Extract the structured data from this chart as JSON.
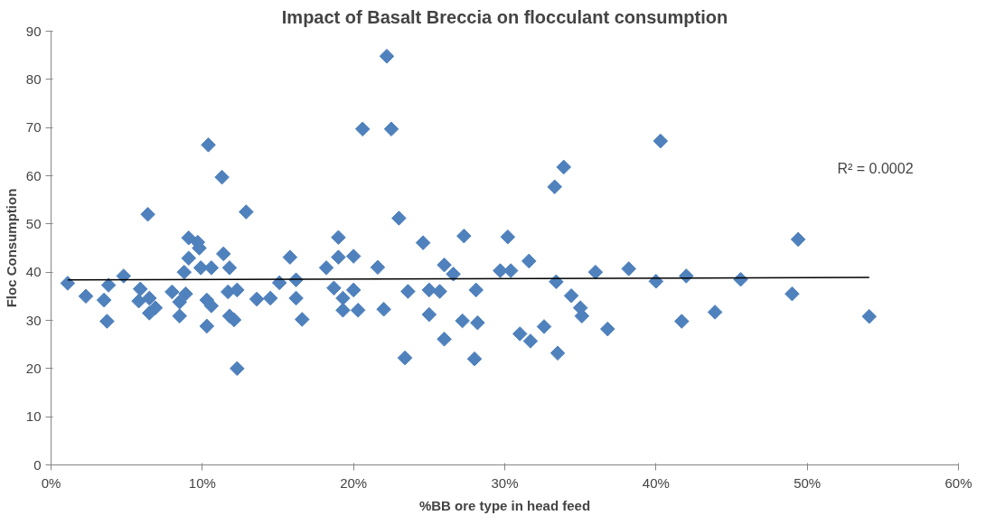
{
  "chart_data": {
    "type": "scatter",
    "title": "Impact of Basalt Breccia on flocculant consumption",
    "xlabel": "%BB ore type in head feed",
    "ylabel": "Floc Consumption",
    "xlim": [
      0,
      60
    ],
    "ylim": [
      0,
      90
    ],
    "xticks": [
      {
        "value": 0,
        "label": "0%"
      },
      {
        "value": 10,
        "label": "10%"
      },
      {
        "value": 20,
        "label": "20%"
      },
      {
        "value": 30,
        "label": "30%"
      },
      {
        "value": 40,
        "label": "40%"
      },
      {
        "value": 50,
        "label": "50%"
      },
      {
        "value": 60,
        "label": "60%"
      }
    ],
    "yticks": [
      0,
      10,
      20,
      30,
      40,
      50,
      60,
      70,
      80,
      90
    ],
    "grid": false,
    "annotations": [
      "R² = 0.0002"
    ],
    "series": [
      {
        "marker": "diamond",
        "color": "#4f81bd",
        "x": [
          1.1,
          2.3,
          3.8,
          3.5,
          3.7,
          4.8,
          5.9,
          5.8,
          6.4,
          6.5,
          6.5,
          6.9,
          8.0,
          8.5,
          8.9,
          8.5,
          9.1,
          9.7,
          9.8,
          8.8,
          9.1,
          9.9,
          10.6,
          10.4,
          11.3,
          12.9,
          11.4,
          11.8,
          10.3,
          10.6,
          10.3,
          11.7,
          12.3,
          11.8,
          12.1,
          12.3,
          13.6,
          14.5,
          15.1,
          15.8,
          16.2,
          16.2,
          16.6,
          18.2,
          19.0,
          19.0,
          18.7,
          19.3,
          19.3,
          20.0,
          22.2,
          20.6,
          22.5,
          23.0,
          21.6,
          20.0,
          20.3,
          22.0,
          24.6,
          23.6,
          23.4,
          25.0,
          25.0,
          25.7,
          26.0,
          26.6,
          27.3,
          26.0,
          27.2,
          28.1,
          28.2,
          28.0,
          29.7,
          30.2,
          30.4,
          31.6,
          31.0,
          31.7,
          32.6,
          33.3,
          33.9,
          33.4,
          33.5,
          34.4,
          35.0,
          35.1,
          36.8,
          36.0,
          38.2,
          40.3,
          40.0,
          42.0,
          41.7,
          43.9,
          45.6,
          49.4,
          49.0,
          54.1
        ],
        "values": [
          37.7,
          35.0,
          37.3,
          34.2,
          29.8,
          39.2,
          36.5,
          34.0,
          52.0,
          34.6,
          31.5,
          32.6,
          35.9,
          30.9,
          35.5,
          33.8,
          47.1,
          46.2,
          45.0,
          40.0,
          42.9,
          40.9,
          40.9,
          66.4,
          59.7,
          52.5,
          43.8,
          40.9,
          34.2,
          33.0,
          28.8,
          35.9,
          36.3,
          30.9,
          30.1,
          20.0,
          34.4,
          34.6,
          37.8,
          43.1,
          38.4,
          34.6,
          30.2,
          40.9,
          47.2,
          43.1,
          36.7,
          34.6,
          32.1,
          43.3,
          84.8,
          69.7,
          69.7,
          51.2,
          41.0,
          36.3,
          32.1,
          32.3,
          46.1,
          36.0,
          22.2,
          36.3,
          31.2,
          36.0,
          41.5,
          39.6,
          47.5,
          26.1,
          29.9,
          36.3,
          29.5,
          22.0,
          40.3,
          47.3,
          40.3,
          42.3,
          27.2,
          25.7,
          28.7,
          57.7,
          61.8,
          38.0,
          23.2,
          35.1,
          32.6,
          30.9,
          28.2,
          40.0,
          40.7,
          67.2,
          38.1,
          39.2,
          29.8,
          31.7,
          38.5,
          46.8,
          35.5,
          30.8
        ]
      },
      {
        "type": "line",
        "color": "#000000",
        "x": [
          1.1,
          54.1
        ],
        "values": [
          38.4,
          38.9
        ]
      }
    ]
  }
}
